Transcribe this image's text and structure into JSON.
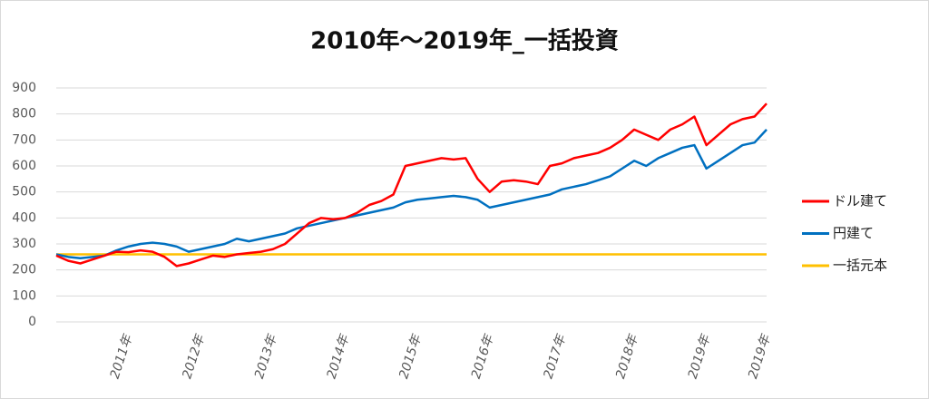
{
  "chart_data": {
    "type": "line",
    "title": "2010年～2019年_一括投資",
    "categories": [
      null,
      null,
      null,
      null,
      null,
      null,
      "2011年",
      null,
      null,
      null,
      null,
      null,
      "2012年",
      null,
      null,
      null,
      null,
      null,
      "2013年",
      null,
      null,
      null,
      null,
      null,
      "2014年",
      null,
      null,
      null,
      null,
      null,
      "2015年",
      null,
      null,
      null,
      null,
      null,
      "2016年",
      null,
      null,
      null,
      null,
      null,
      "2017年",
      null,
      null,
      null,
      null,
      null,
      "2018年",
      null,
      null,
      null,
      null,
      null,
      "2019年",
      null,
      null,
      null,
      null,
      "2019年"
    ],
    "series": [
      {
        "name": "ドル建て",
        "color": "#ff0000",
        "values": [
          255,
          235,
          225,
          240,
          255,
          270,
          268,
          275,
          270,
          250,
          215,
          225,
          240,
          255,
          250,
          260,
          265,
          270,
          280,
          300,
          340,
          380,
          400,
          395,
          400,
          420,
          450,
          465,
          490,
          600,
          610,
          620,
          630,
          625,
          630,
          550,
          500,
          540,
          545,
          540,
          530,
          600,
          610,
          630,
          640,
          650,
          670,
          700,
          740,
          720,
          700,
          740,
          760,
          790,
          680,
          720,
          760,
          780,
          790,
          840
        ]
      },
      {
        "name": "円建て",
        "color": "#0070c0",
        "values": [
          260,
          250,
          245,
          250,
          255,
          275,
          290,
          300,
          305,
          300,
          290,
          270,
          280,
          290,
          300,
          320,
          310,
          320,
          330,
          340,
          360,
          370,
          380,
          390,
          400,
          410,
          420,
          430,
          440,
          460,
          470,
          475,
          480,
          485,
          480,
          470,
          440,
          450,
          460,
          470,
          480,
          490,
          510,
          520,
          530,
          545,
          560,
          590,
          620,
          600,
          630,
          650,
          670,
          680,
          590,
          620,
          650,
          680,
          690,
          740
        ]
      },
      {
        "name": "一括元本",
        "color": "#ffc000",
        "values": [
          260,
          260,
          260,
          260,
          260,
          260,
          260,
          260,
          260,
          260,
          260,
          260,
          260,
          260,
          260,
          260,
          260,
          260,
          260,
          260,
          260,
          260,
          260,
          260,
          260,
          260,
          260,
          260,
          260,
          260,
          260,
          260,
          260,
          260,
          260,
          260,
          260,
          260,
          260,
          260,
          260,
          260,
          260,
          260,
          260,
          260,
          260,
          260,
          260,
          260,
          260,
          260,
          260,
          260,
          260,
          260,
          260,
          260,
          260,
          260
        ]
      }
    ],
    "ylim": [
      0,
      900
    ],
    "yticks": [
      0,
      100,
      200,
      300,
      400,
      500,
      600,
      700,
      800,
      900
    ],
    "grid": true,
    "legend": "right"
  }
}
